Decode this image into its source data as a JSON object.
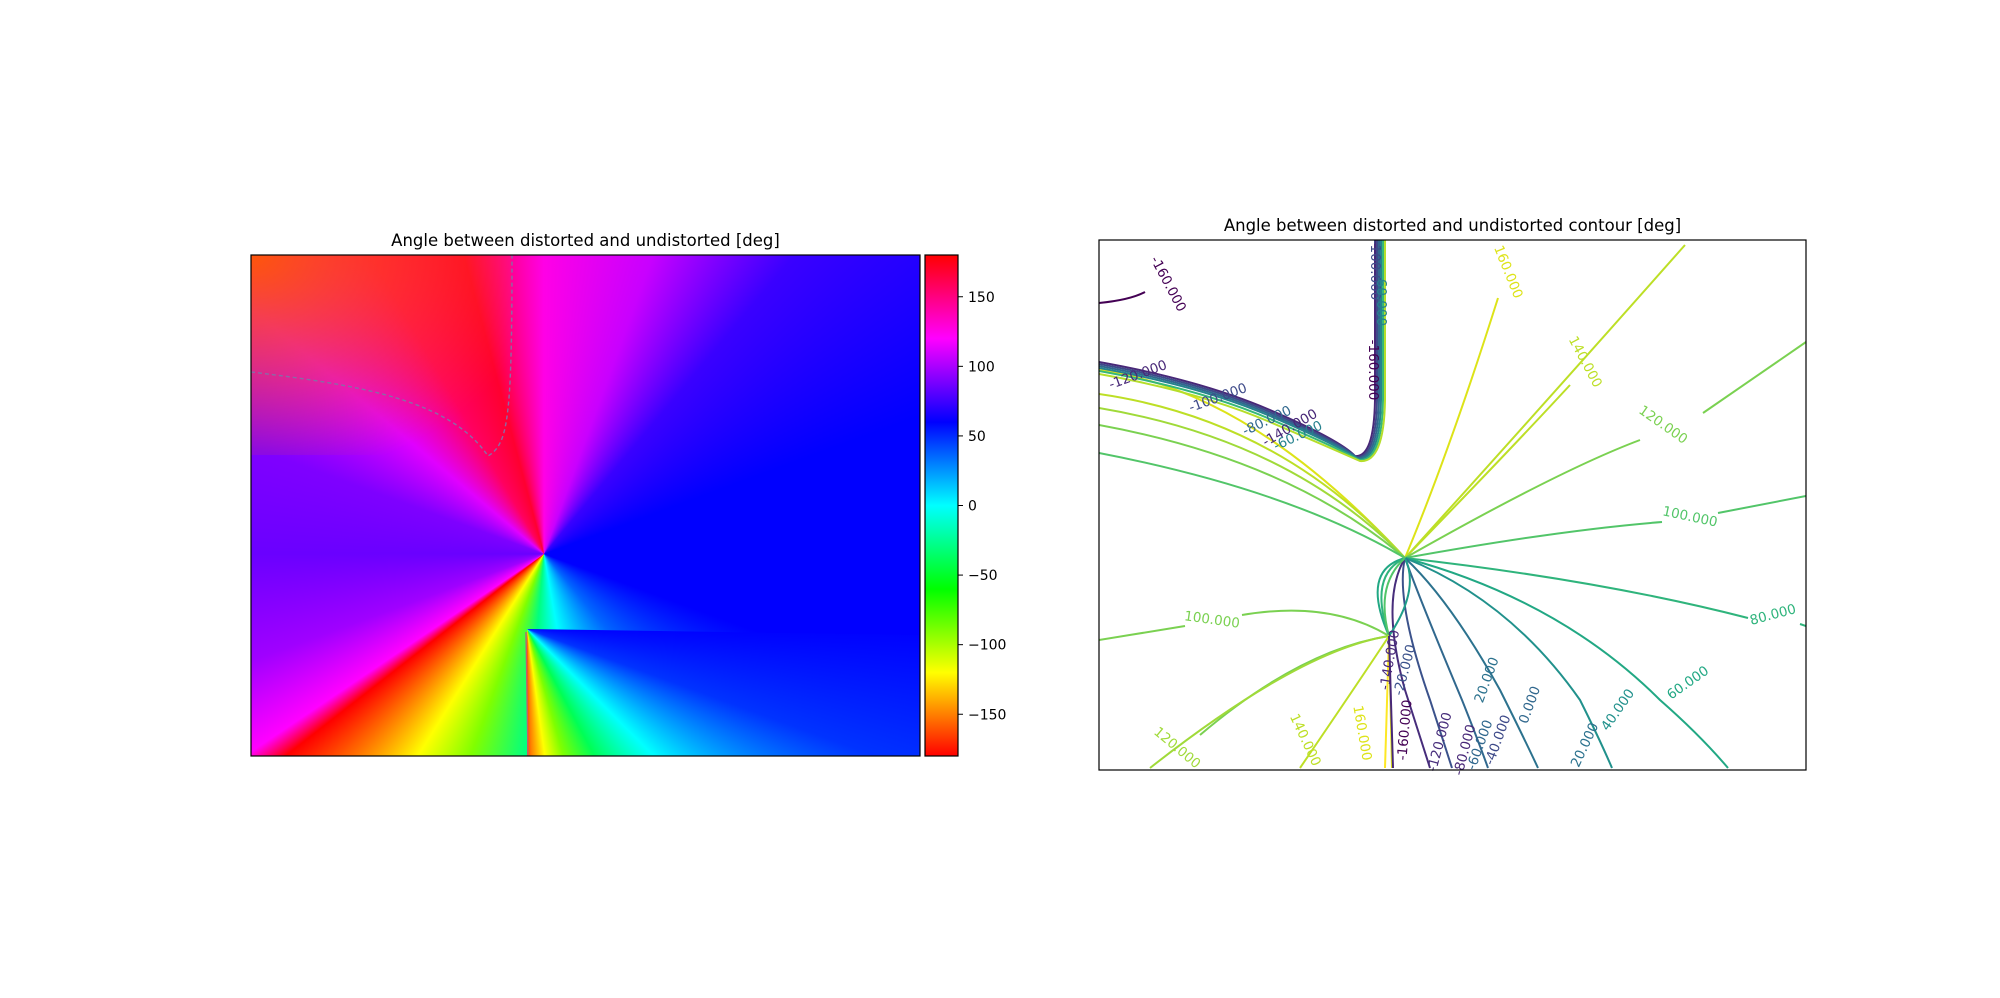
{
  "chart_data": [
    {
      "type": "heatmap",
      "title": "Angle between distorted and undistorted [deg]",
      "xlabel": "",
      "ylabel": "",
      "colormap": "hsv",
      "colorbar": {
        "range": [
          -180,
          180
        ],
        "ticks": [
          150,
          100,
          50,
          0,
          -50,
          -100,
          -150
        ],
        "tick_labels": [
          "150",
          "100",
          "50",
          "0",
          "−50",
          "−100",
          "−150"
        ]
      },
      "axes_ticks_visible": false,
      "grid": false
    },
    {
      "type": "contour",
      "title": "Angle between distorted and undistorted contour [deg]",
      "xlabel": "",
      "ylabel": "",
      "colormap": "viridis",
      "level_range": [
        -160,
        160
      ],
      "axes_ticks_visible": false,
      "grid": false,
      "visible_level_labels": [
        "-160.000",
        "-140.000",
        "-120.000",
        "-100.000",
        "-80.000",
        "-60.000",
        "-40.000",
        "-20.000",
        "0.000",
        "20.000",
        "40.000",
        "60.000",
        "80.000",
        "100.000",
        "120.000",
        "140.000",
        "160.000"
      ]
    }
  ],
  "colors": {
    "background": "#ffffff",
    "frame": "#000000"
  }
}
